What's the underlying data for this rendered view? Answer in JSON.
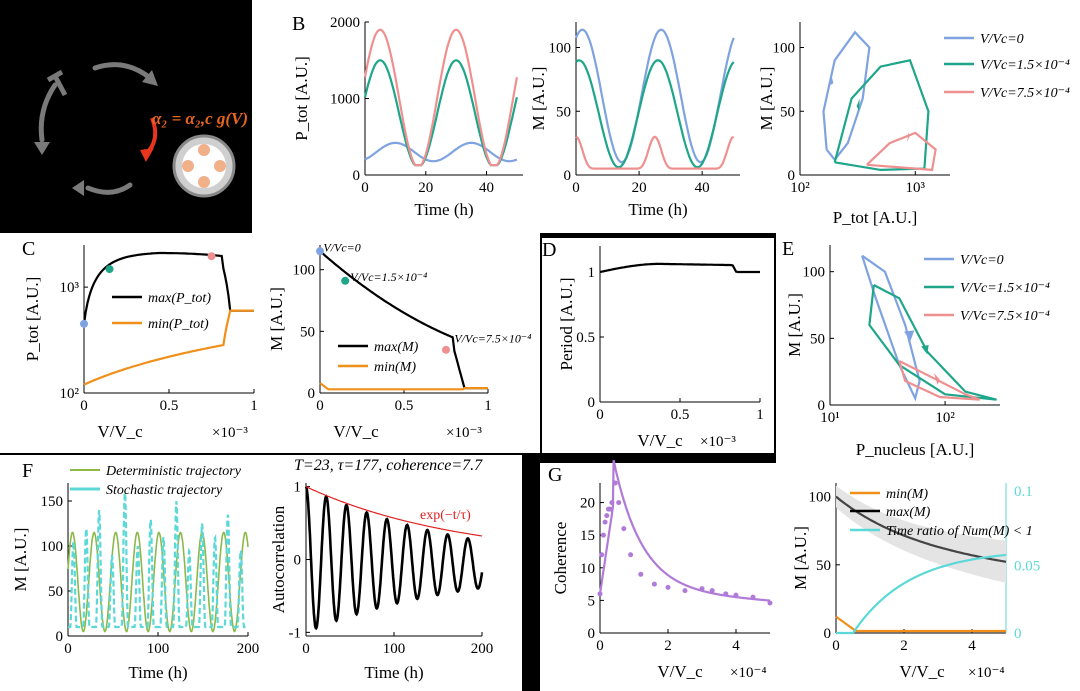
{
  "panel_labels": {
    "B": "B",
    "C": "C",
    "D": "D",
    "E": "E",
    "F": "F",
    "G": "G"
  },
  "schematic": {
    "equation": "α₂ = α₂,c g(V)",
    "color_arrow": "#e8361e",
    "color_text": "#e8661e"
  },
  "legend_entries": [
    "V/Vc=0",
    "V/Vc=1.5×10⁻⁴",
    "V/Vc=7.5×10⁻⁴"
  ],
  "colors": {
    "blue": "#7ea3e0",
    "green": "#1fa68a",
    "pink": "#ef9090",
    "orange": "#f0901a",
    "purple": "#b07ad8",
    "cyan": "#5cd8d8",
    "olive": "#8db84a",
    "black": "#000000",
    "red": "#e02020"
  },
  "chart_data": [
    {
      "id": "B1",
      "type": "line",
      "ylabel": "P_tot [A.U.]",
      "xlabel": "Time (h)",
      "xlim": [
        0,
        50
      ],
      "ylim": [
        0,
        2000
      ],
      "xticks": [
        "0",
        "20",
        "40"
      ],
      "yticks": [
        "0",
        "1000",
        "2000"
      ],
      "series": [
        {
          "name": "V/Vc=0",
          "color": "blue",
          "period": 25,
          "phase": 10,
          "mean": 300,
          "amp": 120
        },
        {
          "name": "V/Vc=1.5×10⁻⁴",
          "color": "green",
          "period": 25,
          "phase": 5,
          "mean": 800,
          "amp": 700
        },
        {
          "name": "V/Vc=7.5×10⁻⁴",
          "color": "pink",
          "period": 25,
          "phase": 5,
          "mean": 1000,
          "amp": 900
        }
      ]
    },
    {
      "id": "B2",
      "type": "line",
      "ylabel": "M [A.U.]",
      "xlabel": "Time (h)",
      "xlim": [
        0,
        50
      ],
      "ylim": [
        0,
        120
      ],
      "xticks": [
        "0",
        "20",
        "40"
      ],
      "yticks": [
        "0",
        "50",
        "100"
      ],
      "series": [
        {
          "name": "V/Vc=0",
          "color": "blue",
          "period": 25,
          "phase": 2,
          "mean": 62,
          "amp": 52
        },
        {
          "name": "V/Vc=1.5×10⁻⁴",
          "color": "green",
          "period": 25,
          "phase": 1,
          "mean": 48,
          "amp": 42
        },
        {
          "name": "V/Vc=7.5×10⁻⁴",
          "color": "pink",
          "period": 25,
          "phase": 0,
          "mean": 10,
          "amp": 25
        }
      ]
    },
    {
      "id": "B3",
      "type": "line",
      "ylabel": "M [A.U.]",
      "xlabel": "P_tot [A.U.]",
      "xlim_log": [
        100,
        2000
      ],
      "ylim": [
        0,
        120
      ],
      "xticks": [
        "10²",
        "10³"
      ],
      "yticks": [
        "0",
        "50",
        "100"
      ]
    },
    {
      "id": "C1",
      "type": "line",
      "ylabel": "P_tot [A.U.]",
      "xlabel": "V/V_c",
      "xlim": [
        0,
        1
      ],
      "ylim_log": [
        100,
        2500
      ],
      "xticks": [
        "0",
        "0.5",
        "1"
      ],
      "yticks": [
        "10²",
        "10³"
      ],
      "xscale": "×10⁻³",
      "series": [
        {
          "name": "max(P_tot)",
          "color": "black"
        },
        {
          "name": "min(P_tot)",
          "color": "orange"
        }
      ]
    },
    {
      "id": "C2",
      "type": "line",
      "ylabel": "M [A.U.]",
      "xlabel": "V/V_c",
      "xlim": [
        0,
        1
      ],
      "ylim": [
        0,
        120
      ],
      "xticks": [
        "0",
        "0.5",
        "1"
      ],
      "yticks": [
        "0",
        "50",
        "100"
      ],
      "xscale": "×10⁻³",
      "annotations": [
        "V/Vc=0",
        "V/Vc=1.5×10⁻⁴",
        "V/Vc=7.5×10⁻⁴"
      ],
      "series": [
        {
          "name": "max(M)",
          "color": "black"
        },
        {
          "name": "min(M)",
          "color": "orange"
        }
      ]
    },
    {
      "id": "D",
      "type": "line",
      "ylabel": "Period [A.U.]",
      "xlabel": "V/V_c",
      "xlim": [
        0,
        1
      ],
      "ylim": [
        0,
        1.2
      ],
      "xticks": [
        "0",
        "0.5",
        "1"
      ],
      "yticks": [
        "0",
        "0.5",
        "1"
      ],
      "xscale": "×10⁻³"
    },
    {
      "id": "E",
      "type": "line",
      "ylabel": "M [A.U.]",
      "xlabel": "P_nucleus [A.U.]",
      "xlim_log": [
        10,
        300
      ],
      "ylim": [
        0,
        120
      ],
      "xticks": [
        "10¹",
        "10²"
      ],
      "yticks": [
        "0",
        "50",
        "100"
      ]
    },
    {
      "id": "F1",
      "type": "line",
      "ylabel": "M [A.U.]",
      "xlabel": "Time (h)",
      "xlim": [
        0,
        200
      ],
      "ylim": [
        0,
        170
      ],
      "xticks": [
        "0",
        "100",
        "200"
      ],
      "yticks": [
        "0",
        "50",
        "100",
        "150"
      ],
      "series": [
        {
          "name": "Deterministic trajectory",
          "color": "olive"
        },
        {
          "name": "Stochastic trajectory",
          "color": "cyan"
        }
      ]
    },
    {
      "id": "F2",
      "type": "line",
      "title": "T=23, τ=177, coherence=7.7",
      "ylabel": "Autocorrelation",
      "xlabel": "Time (h)",
      "xlim": [
        0,
        200
      ],
      "ylim": [
        -1,
        1
      ],
      "xticks": [
        "0",
        "100",
        "200"
      ],
      "yticks": [
        "-1",
        "0",
        "1"
      ],
      "envelope_label": "exp(−t/τ)",
      "period": 23,
      "tau": 177
    },
    {
      "id": "G1",
      "type": "scatter",
      "ylabel": "Coherence",
      "xlabel": "V/V_c",
      "xlim": [
        0,
        5
      ],
      "ylim": [
        0,
        23
      ],
      "xticks": [
        "0",
        "2",
        "4"
      ],
      "yticks": [
        "0",
        "5",
        "10",
        "15",
        "20"
      ],
      "xscale": "×10⁻⁴",
      "points": [
        [
          0,
          6
        ],
        [
          0.05,
          12
        ],
        [
          0.1,
          15
        ],
        [
          0.15,
          17
        ],
        [
          0.2,
          18
        ],
        [
          0.25,
          19
        ],
        [
          0.3,
          19
        ],
        [
          0.35,
          20
        ],
        [
          0.45,
          23
        ],
        [
          0.55,
          20
        ],
        [
          0.7,
          16
        ],
        [
          0.9,
          12
        ],
        [
          1.2,
          9
        ],
        [
          1.6,
          7.5
        ],
        [
          2.0,
          7
        ],
        [
          2.5,
          6.5
        ],
        [
          3.0,
          6.8
        ],
        [
          3.3,
          6.5
        ],
        [
          3.7,
          6
        ],
        [
          4.0,
          5.8
        ],
        [
          4.5,
          5.5
        ],
        [
          5,
          4.6
        ]
      ]
    },
    {
      "id": "G2",
      "type": "line",
      "ylabel": "M [A.U.]",
      "xlabel": "V/V_c",
      "xlim": [
        0,
        5
      ],
      "ylim": [
        0,
        110
      ],
      "ylim_right": [
        0,
        0.1
      ],
      "xticks": [
        "0",
        "2",
        "4"
      ],
      "yticks": [
        "0",
        "50",
        "100"
      ],
      "yticks_right": [
        "0",
        "0.05",
        "0.1"
      ],
      "xscale": "×10⁻⁴",
      "series": [
        {
          "name": "min(M)",
          "color": "orange"
        },
        {
          "name": "max(M)",
          "color": "black"
        },
        {
          "name": "Time ratio of Num(M) < 1",
          "color": "cyan"
        }
      ]
    }
  ]
}
